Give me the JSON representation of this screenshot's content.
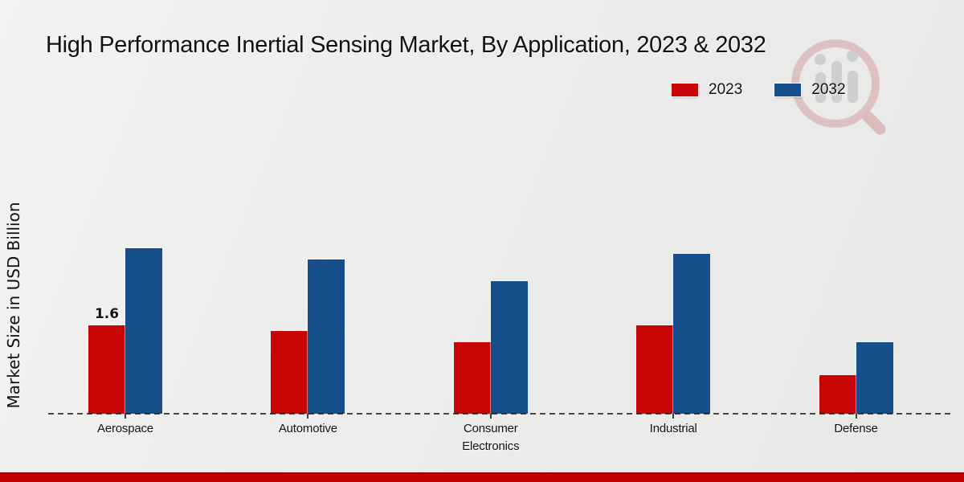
{
  "page": {
    "title": "High Performance Inertial Sensing Market, By Application, 2023 & 2032",
    "ylabel": "Market Size in USD Billion"
  },
  "legend": {
    "items": [
      {
        "label": "2023",
        "color": "#c90404"
      },
      {
        "label": "2032",
        "color": "#154e8a"
      }
    ]
  },
  "chart_data": {
    "type": "bar",
    "title": "High Performance Inertial Sensing Market, By Application, 2023 & 2032",
    "xlabel": "",
    "ylabel": "Market Size in USD Billion",
    "categories": [
      "Aerospace",
      "Automotive",
      "Consumer Electronics",
      "Industrial",
      "Defense"
    ],
    "series": [
      {
        "name": "2023",
        "color": "#c90404",
        "values": [
          1.6,
          1.5,
          1.3,
          1.6,
          0.7
        ]
      },
      {
        "name": "2032",
        "color": "#154e8a",
        "values": [
          3.0,
          2.8,
          2.4,
          2.9,
          1.3
        ]
      }
    ],
    "ylim": [
      0,
      3.5
    ],
    "grid": false,
    "axis_style": "dashed-baseline-only",
    "legend_position": "top-right",
    "annotations": [
      {
        "series": "2023",
        "category": "Aerospace",
        "text": "1.6"
      }
    ]
  },
  "watermark": {
    "icon": "magnifier-bar-chart-logo"
  },
  "footer": {
    "stripe_color": "#c00000"
  }
}
